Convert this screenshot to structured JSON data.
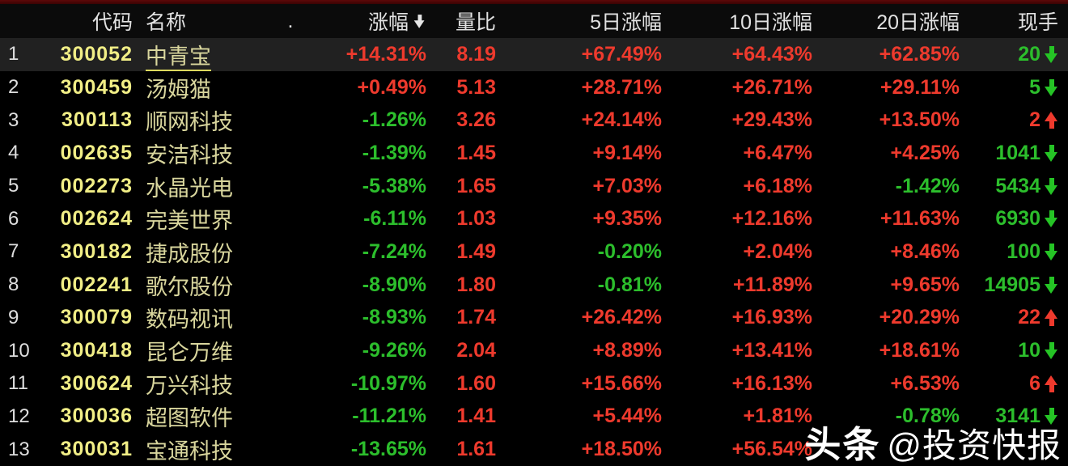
{
  "table": {
    "headers": {
      "index": "",
      "code": "代码",
      "name": "名称",
      "dot": ".",
      "change": "涨幅",
      "change_sort_arrow": "down",
      "vol_ratio": "量比",
      "chg5": "5日涨幅",
      "chg10": "10日涨幅",
      "chg20": "20日涨幅",
      "vol": "现手"
    },
    "rows": [
      {
        "index": "1",
        "code": "300052",
        "name": "中青宝",
        "selected": true,
        "change": "+14.31%",
        "vol_ratio": "8.19",
        "chg5": "+67.49%",
        "chg10": "+64.43%",
        "chg20": "+62.85%",
        "vol": "20",
        "vol_dir": "down"
      },
      {
        "index": "2",
        "code": "300459",
        "name": "汤姆猫",
        "selected": false,
        "change": "+0.49%",
        "vol_ratio": "5.13",
        "chg5": "+28.71%",
        "chg10": "+26.71%",
        "chg20": "+29.11%",
        "vol": "5",
        "vol_dir": "down"
      },
      {
        "index": "3",
        "code": "300113",
        "name": "顺网科技",
        "selected": false,
        "change": "-1.26%",
        "vol_ratio": "3.26",
        "chg5": "+24.14%",
        "chg10": "+29.43%",
        "chg20": "+13.50%",
        "vol": "2",
        "vol_dir": "up"
      },
      {
        "index": "4",
        "code": "002635",
        "name": "安洁科技",
        "selected": false,
        "change": "-1.39%",
        "vol_ratio": "1.45",
        "chg5": "+9.14%",
        "chg10": "+6.47%",
        "chg20": "+4.25%",
        "vol": "1041",
        "vol_dir": "down"
      },
      {
        "index": "5",
        "code": "002273",
        "name": "水晶光电",
        "selected": false,
        "change": "-5.38%",
        "vol_ratio": "1.65",
        "chg5": "+7.03%",
        "chg10": "+6.18%",
        "chg20": "-1.42%",
        "vol": "5434",
        "vol_dir": "down"
      },
      {
        "index": "6",
        "code": "002624",
        "name": "完美世界",
        "selected": false,
        "change": "-6.11%",
        "vol_ratio": "1.03",
        "chg5": "+9.35%",
        "chg10": "+12.16%",
        "chg20": "+11.63%",
        "vol": "6930",
        "vol_dir": "down"
      },
      {
        "index": "7",
        "code": "300182",
        "name": "捷成股份",
        "selected": false,
        "change": "-7.24%",
        "vol_ratio": "1.49",
        "chg5": "-0.20%",
        "chg10": "+2.04%",
        "chg20": "+8.46%",
        "vol": "100",
        "vol_dir": "down"
      },
      {
        "index": "8",
        "code": "002241",
        "name": "歌尔股份",
        "selected": false,
        "change": "-8.90%",
        "vol_ratio": "1.80",
        "chg5": "-0.81%",
        "chg10": "+11.89%",
        "chg20": "+9.65%",
        "vol": "14905",
        "vol_dir": "down"
      },
      {
        "index": "9",
        "code": "300079",
        "name": "数码视讯",
        "selected": false,
        "change": "-8.93%",
        "vol_ratio": "1.74",
        "chg5": "+26.42%",
        "chg10": "+16.93%",
        "chg20": "+20.29%",
        "vol": "22",
        "vol_dir": "up"
      },
      {
        "index": "10",
        "code": "300418",
        "name": "昆仑万维",
        "selected": false,
        "change": "-9.26%",
        "vol_ratio": "2.04",
        "chg5": "+8.89%",
        "chg10": "+13.41%",
        "chg20": "+18.61%",
        "vol": "10",
        "vol_dir": "down"
      },
      {
        "index": "11",
        "code": "300624",
        "name": "万兴科技",
        "selected": false,
        "change": "-10.97%",
        "vol_ratio": "1.60",
        "chg5": "+15.66%",
        "chg10": "+16.13%",
        "chg20": "+6.53%",
        "vol": "6",
        "vol_dir": "up"
      },
      {
        "index": "12",
        "code": "300036",
        "name": "超图软件",
        "selected": false,
        "change": "-11.21%",
        "vol_ratio": "1.41",
        "chg5": "+5.44%",
        "chg10": "+1.81%",
        "chg20": "-0.78%",
        "vol": "3141",
        "vol_dir": "down"
      },
      {
        "index": "13",
        "code": "300031",
        "name": "宝通科技",
        "selected": false,
        "change": "-13.65%",
        "vol_ratio": "1.61",
        "chg5": "+18.50%",
        "chg10": "+56.54%",
        "chg20": "",
        "vol": "",
        "vol_dir": null
      }
    ]
  },
  "watermark": {
    "brand": "头条",
    "handle": "@投资快报"
  },
  "colors": {
    "up_red": "#ee3a2d",
    "down_green": "#2cbe2c",
    "code_yellow": "#f1ee86",
    "name_yellow": "#d9d69d",
    "header_text": "#e2e2e2",
    "selected_row_bg": "#212121",
    "top_strip_red": "#4a0606",
    "background": "#000000"
  }
}
